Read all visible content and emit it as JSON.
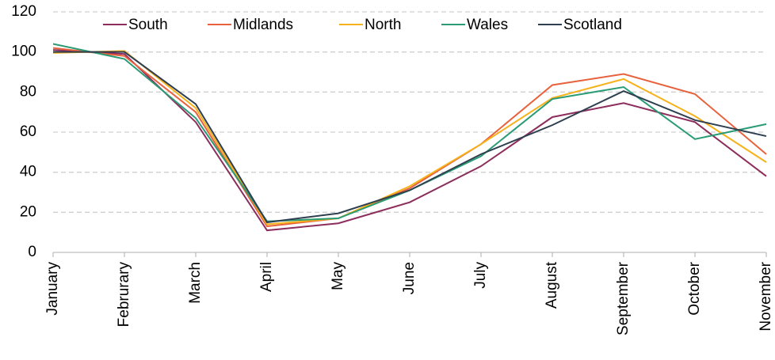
{
  "chart_data": {
    "type": "line",
    "categories": [
      "January",
      "Februrary",
      "March",
      "April",
      "May",
      "June",
      "July",
      "August",
      "September",
      "October",
      "November"
    ],
    "series": [
      {
        "name": "South",
        "color": "#8c2d5c",
        "values": [
          101,
          99,
          65,
          11,
          14.5,
          25,
          43,
          67.5,
          74.5,
          65,
          38
        ]
      },
      {
        "name": "Midlands",
        "color": "#e8613d",
        "values": [
          102,
          98,
          70,
          13,
          17,
          32,
          54,
          83.5,
          89,
          79,
          49
        ]
      },
      {
        "name": "North",
        "color": "#f5b21c",
        "values": [
          99.5,
          100.5,
          72,
          14,
          17,
          33,
          54,
          77,
          86.5,
          68,
          45
        ]
      },
      {
        "name": "Wales",
        "color": "#2a9b75",
        "values": [
          104,
          96.5,
          67,
          15.5,
          17,
          31,
          48,
          76.5,
          82.5,
          56.5,
          64
        ]
      },
      {
        "name": "Scotland",
        "color": "#2e3f50",
        "values": [
          100,
          100,
          74,
          15,
          19.5,
          31,
          49,
          63.5,
          80.5,
          66,
          58
        ]
      }
    ],
    "ylim": [
      0,
      120
    ],
    "yticks": [
      0,
      20,
      40,
      60,
      80,
      100,
      120
    ],
    "grid": true,
    "legend": "top"
  }
}
